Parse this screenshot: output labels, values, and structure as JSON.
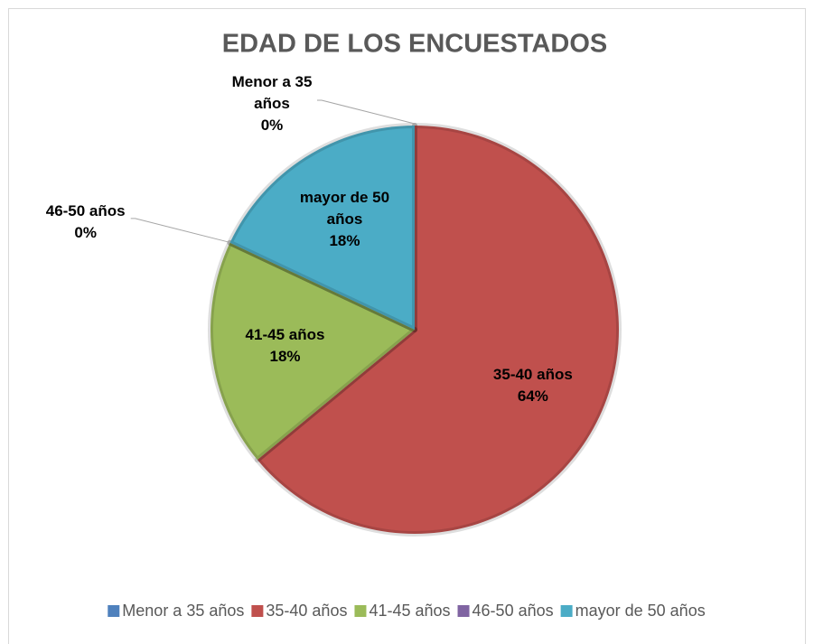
{
  "chart_data": {
    "type": "pie",
    "title": "EDAD DE LOS ENCUESTADOS",
    "categories": [
      "Menor a 35 años",
      "35-40 años",
      "41-45 años",
      "46-50 años",
      "mayor de 50 años"
    ],
    "values": [
      0,
      64,
      18,
      0,
      18
    ],
    "value_labels": [
      "0%",
      "64%",
      "18%",
      "0%",
      "18%"
    ],
    "colors": [
      "#4f81bd",
      "#c0504d",
      "#9bbb59",
      "#8064a2",
      "#4bacc6"
    ],
    "legend": "bottom"
  }
}
